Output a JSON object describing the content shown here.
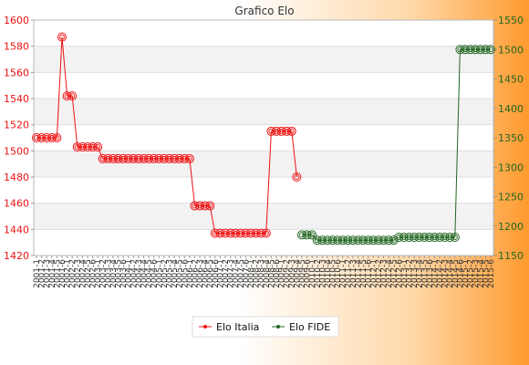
{
  "chart_data": {
    "type": "line",
    "title": "Grafico Elo",
    "xlabel": "",
    "ylabel_left": "",
    "ylabel_right": "",
    "ylim_left": [
      1420,
      1600
    ],
    "ylim_right": [
      1150,
      1550
    ],
    "left_ticks": [
      1420,
      1440,
      1460,
      1480,
      1500,
      1520,
      1540,
      1560,
      1580,
      1600
    ],
    "right_ticks": [
      1150,
      1200,
      1250,
      1300,
      1350,
      1400,
      1450,
      1500,
      1550
    ],
    "grid": true,
    "legend": "bottom",
    "x_labels": [
      "2001-1",
      "2001-2",
      "2001-3",
      "2001-4",
      "2001-5",
      "2001-6",
      "2002-1",
      "2002-2",
      "2002-3",
      "2002-4",
      "2002-5",
      "2002-6",
      "2003-1",
      "2003-2",
      "2003-3",
      "2003-4",
      "2003-5",
      "2003-6",
      "2004-1",
      "2004-2",
      "2004-3",
      "2004-4",
      "2004-5",
      "2004-6",
      "2005-1",
      "2005-2",
      "2005-3",
      "2005-4",
      "2005-5",
      "2005-6",
      "2006-1",
      "2006-2",
      "2006-3",
      "2006-4",
      "2006-5",
      "2006-6",
      "2007-1",
      "2007-2",
      "2007-3",
      "2007-4",
      "2007-5",
      "2007-6",
      "2008-1",
      "2008-2",
      "2008-3",
      "2008-4",
      "2008-5",
      "2008-6",
      "2009-1",
      "2009-2",
      "2009-3",
      "2009-4",
      "2009-5",
      "2009-6",
      "2010-1",
      "2010-2",
      "2010-3",
      "2010-4",
      "2010-5",
      "2010-6",
      "2011-1",
      "2011-2",
      "2011-3",
      "2011-4",
      "2011-5",
      "2011-6",
      "2012-1",
      "2012-2",
      "2012-3",
      "2012-4",
      "2012-5",
      "2012-6",
      "2013-1",
      "2013-2",
      "2013-3",
      "2013-4",
      "2013-5",
      "2013-6",
      "2014-1",
      "2014-2",
      "2014-3",
      "2014-4",
      "2014-5",
      "2014-6",
      "2015-1",
      "2015-2",
      "2015-3",
      "2015-4",
      "2015-5",
      "2015-6"
    ],
    "series": [
      {
        "name": "Elo Italia",
        "axis": "left",
        "color": "#ee1111",
        "values": [
          1510,
          1510,
          1510,
          1510,
          1510,
          1587,
          1542,
          1542,
          1503,
          1503,
          1503,
          1503,
          1503,
          1494,
          1494,
          1494,
          1494,
          1494,
          1494,
          1494,
          1494,
          1494,
          1494,
          1494,
          1494,
          1494,
          1494,
          1494,
          1494,
          1494,
          1494,
          1458,
          1458,
          1458,
          1458,
          1437,
          1437,
          1437,
          1437,
          1437,
          1437,
          1437,
          1437,
          1437,
          1437,
          1437,
          1515,
          1515,
          1515,
          1515,
          1515,
          1480,
          null,
          null,
          null,
          null,
          null,
          null,
          null,
          null,
          null,
          null,
          null,
          null,
          null,
          null,
          null,
          null,
          null,
          null,
          null,
          null,
          null,
          null,
          null,
          null,
          null,
          null,
          null,
          null,
          null,
          null,
          null,
          null,
          null,
          null,
          null,
          null,
          null,
          null
        ]
      },
      {
        "name": "Elo FIDE",
        "axis": "right",
        "color": "#226622",
        "values": [
          null,
          null,
          null,
          null,
          null,
          null,
          null,
          null,
          null,
          null,
          null,
          null,
          null,
          null,
          null,
          null,
          null,
          null,
          null,
          null,
          null,
          null,
          null,
          null,
          null,
          null,
          null,
          null,
          null,
          null,
          null,
          null,
          null,
          null,
          null,
          null,
          null,
          null,
          null,
          null,
          null,
          null,
          null,
          null,
          null,
          null,
          null,
          null,
          null,
          null,
          null,
          null,
          1185,
          1185,
          1185,
          1176,
          1176,
          1176,
          1176,
          1176,
          1176,
          1176,
          1176,
          1176,
          1176,
          1176,
          1176,
          1176,
          1176,
          1176,
          1176,
          1181,
          1181,
          1181,
          1181,
          1181,
          1181,
          1181,
          1181,
          1181,
          1181,
          1181,
          1181,
          1500,
          1500,
          1500,
          1500,
          1500,
          1500,
          1500
        ]
      }
    ]
  }
}
